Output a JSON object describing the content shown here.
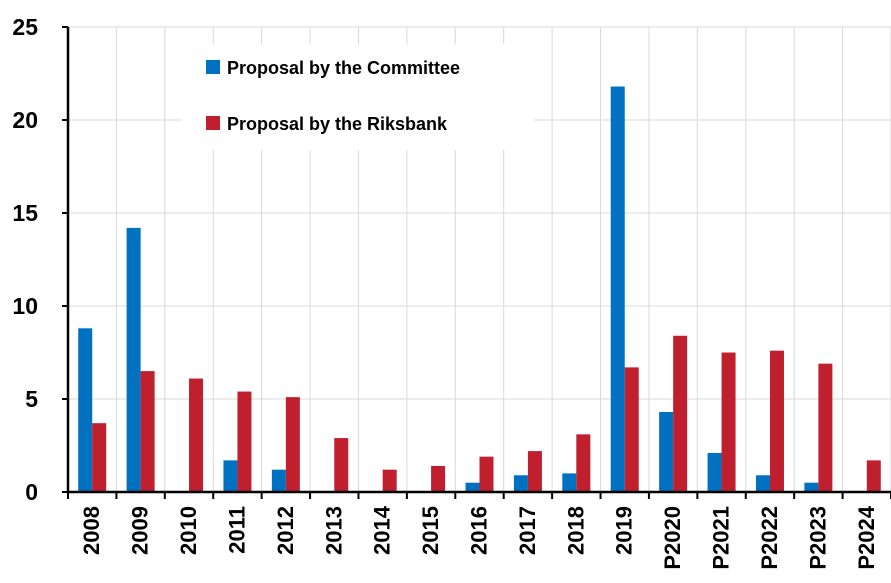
{
  "chart_data": {
    "type": "bar",
    "title": "",
    "xlabel": "",
    "ylabel": "",
    "categories": [
      "2008",
      "2009",
      "2010",
      "2011",
      "2012",
      "2013",
      "2014",
      "2015",
      "2016",
      "2017",
      "2018",
      "2019",
      "P2020",
      "P2021",
      "P2022",
      "P2023",
      "P2024"
    ],
    "series": [
      {
        "name": "Proposal by the Committee",
        "color": "#0070C0",
        "values": [
          8.8,
          14.2,
          0,
          1.7,
          1.2,
          0,
          0,
          0,
          0.5,
          0.9,
          1.0,
          21.8,
          4.3,
          2.1,
          0.9,
          0.5,
          0
        ]
      },
      {
        "name": "Proposal by the Riksbank",
        "color": "#C0202E",
        "values": [
          3.7,
          6.5,
          6.1,
          5.4,
          5.1,
          2.9,
          1.2,
          1.4,
          1.9,
          2.2,
          3.1,
          6.7,
          8.4,
          7.5,
          7.6,
          6.9,
          1.7
        ]
      }
    ],
    "ylim": [
      0,
      25
    ],
    "yticks": [
      "0",
      "5",
      "10",
      "15",
      "20",
      "25"
    ],
    "grid": true,
    "legend_position": "top-left"
  }
}
